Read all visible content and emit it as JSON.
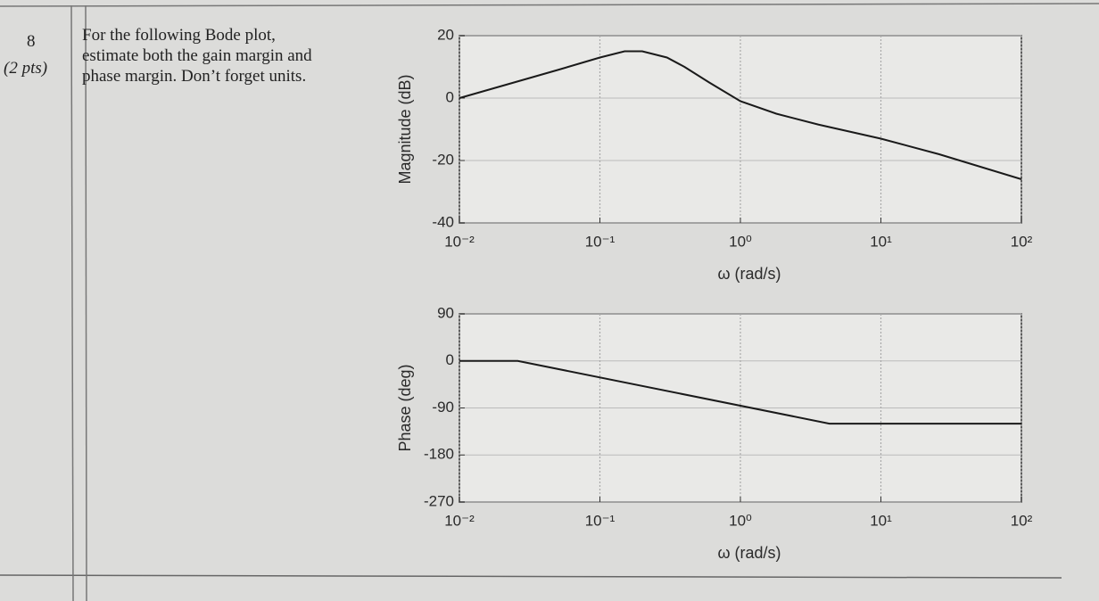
{
  "question": {
    "number": "8",
    "points": "(2 pts)",
    "text": [
      "For the following Bode plot,",
      "estimate both the gain margin and",
      "phase margin. Don’t forget units."
    ]
  },
  "chart_data": [
    {
      "type": "line",
      "ylabel": "Magnitude (dB)",
      "xlabel": "ω (rad/s)",
      "xscale": "log",
      "grid": true,
      "xlim": [
        0.01,
        100
      ],
      "xticks": [
        {
          "value": 0.01,
          "label": "10⁻²"
        },
        {
          "value": 0.1,
          "label": "10⁻¹"
        },
        {
          "value": 1,
          "label": "10⁰"
        },
        {
          "value": 10,
          "label": "10¹"
        },
        {
          "value": 100,
          "label": "10²"
        }
      ],
      "ylim": [
        -40,
        20
      ],
      "yticks": [
        -40,
        -20,
        0,
        20
      ],
      "x": [
        0.01,
        0.05,
        0.1,
        0.15,
        0.2,
        0.3,
        0.4,
        0.6,
        1,
        1.8,
        3.6,
        10,
        26,
        100
      ],
      "series": [
        {
          "color": "#1a1a1a",
          "values": [
            0,
            9,
            13,
            15,
            15,
            13,
            10,
            5,
            -1,
            -5,
            -8.5,
            -13,
            -18,
            -26
          ]
        }
      ]
    },
    {
      "type": "line",
      "ylabel": "Phase (deg)",
      "xlabel": "ω (rad/s)",
      "xscale": "log",
      "grid": true,
      "xlim": [
        0.01,
        100
      ],
      "xticks": [
        {
          "value": 0.01,
          "label": "10⁻²"
        },
        {
          "value": 0.1,
          "label": "10⁻¹"
        },
        {
          "value": 1,
          "label": "10⁰"
        },
        {
          "value": 10,
          "label": "10¹"
        },
        {
          "value": 100,
          "label": "10²"
        }
      ],
      "ylim": [
        -270,
        90
      ],
      "yticks": [
        -270,
        -180,
        -90,
        0,
        90
      ],
      "x": [
        0.01,
        0.026,
        4.3,
        100
      ],
      "series": [
        {
          "color": "#1a1a1a",
          "values": [
            0,
            0,
            -120,
            -120
          ]
        }
      ]
    }
  ]
}
